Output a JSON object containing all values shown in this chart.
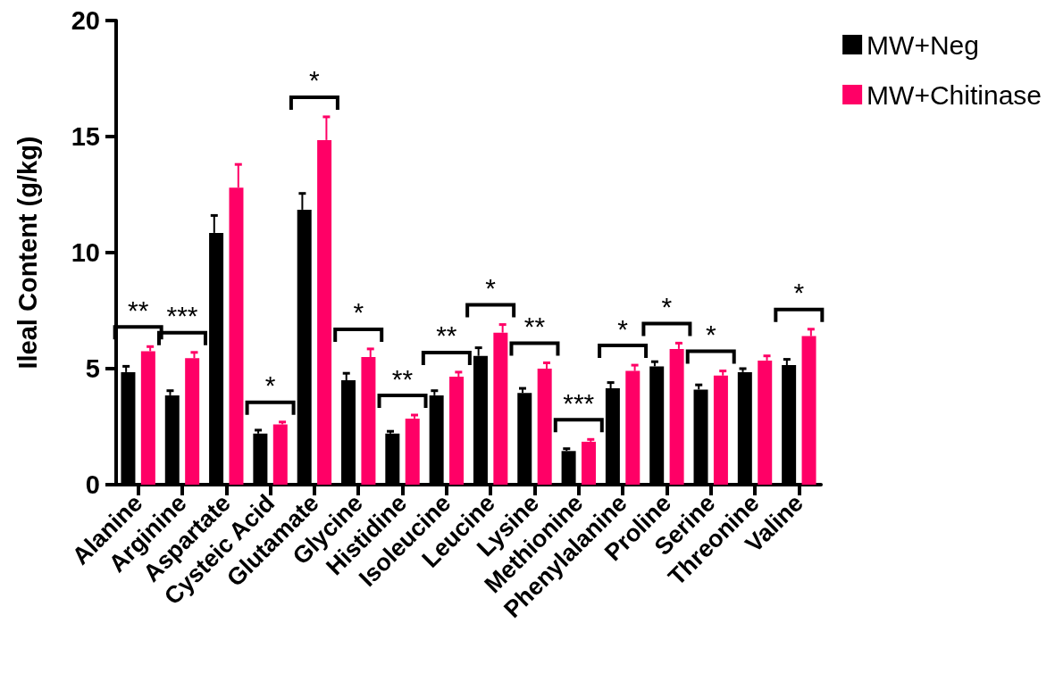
{
  "chart_data": {
    "type": "bar",
    "ylabel": "Ileal Content (g/kg)",
    "categories": [
      "Alanine",
      "Arginine",
      "Aspartate",
      "Cysteic Acid",
      "Glutamate",
      "Glycine",
      "Histidine",
      "Isoleucine",
      "Leucine",
      "Lysine",
      "Methionine",
      "Phenylalanine",
      "Proline",
      "Serine",
      "Threonine",
      "Valine"
    ],
    "series": [
      {
        "name": "MW+Neg",
        "color": "#000000",
        "values": [
          4.85,
          3.85,
          10.85,
          2.2,
          11.85,
          4.5,
          2.2,
          3.85,
          5.55,
          3.95,
          1.45,
          4.15,
          5.1,
          4.1,
          4.85,
          5.15
        ],
        "errors": [
          0.25,
          0.2,
          0.75,
          0.15,
          0.7,
          0.3,
          0.1,
          0.2,
          0.35,
          0.2,
          0.1,
          0.25,
          0.2,
          0.2,
          0.15,
          0.25
        ]
      },
      {
        "name": "MW+Chitinase",
        "color": "#ff0066",
        "values": [
          5.75,
          5.45,
          12.8,
          2.6,
          14.85,
          5.5,
          2.85,
          4.65,
          6.55,
          5.0,
          1.85,
          4.9,
          5.85,
          4.7,
          5.35,
          6.4
        ],
        "errors": [
          0.2,
          0.25,
          1.0,
          0.1,
          1.0,
          0.35,
          0.15,
          0.2,
          0.35,
          0.25,
          0.1,
          0.25,
          0.25,
          0.2,
          0.2,
          0.3
        ]
      }
    ],
    "ylim": [
      0,
      20
    ],
    "yticks": [
      0,
      5,
      10,
      15,
      20
    ],
    "grid": false,
    "legend": "top right",
    "annotations": [
      {
        "text": "**",
        "x": "Alanine",
        "y": 5.75
      },
      {
        "text": "***",
        "x": "Arginine",
        "y": 5.45
      },
      {
        "text": "*",
        "x": "Cysteic Acid",
        "y": 2.6
      },
      {
        "text": "*",
        "x": "Glutamate",
        "y": 14.85
      },
      {
        "text": "*",
        "x": "Glycine",
        "y": 5.5
      },
      {
        "text": "**",
        "x": "Histidine",
        "y": 2.85
      },
      {
        "text": "**",
        "x": "Isoleucine",
        "y": 4.65
      },
      {
        "text": "*",
        "x": "Leucine",
        "y": 6.55
      },
      {
        "text": "**",
        "x": "Lysine",
        "y": 5.0
      },
      {
        "text": "***",
        "x": "Methionine",
        "y": 1.85
      },
      {
        "text": "*",
        "x": "Phenylalanine",
        "y": 4.9
      },
      {
        "text": "*",
        "x": "Proline",
        "y": 5.85
      },
      {
        "text": "*",
        "x": "Serine",
        "y": 4.7
      },
      {
        "text": "*",
        "x": "Valine",
        "y": 6.4
      }
    ]
  }
}
